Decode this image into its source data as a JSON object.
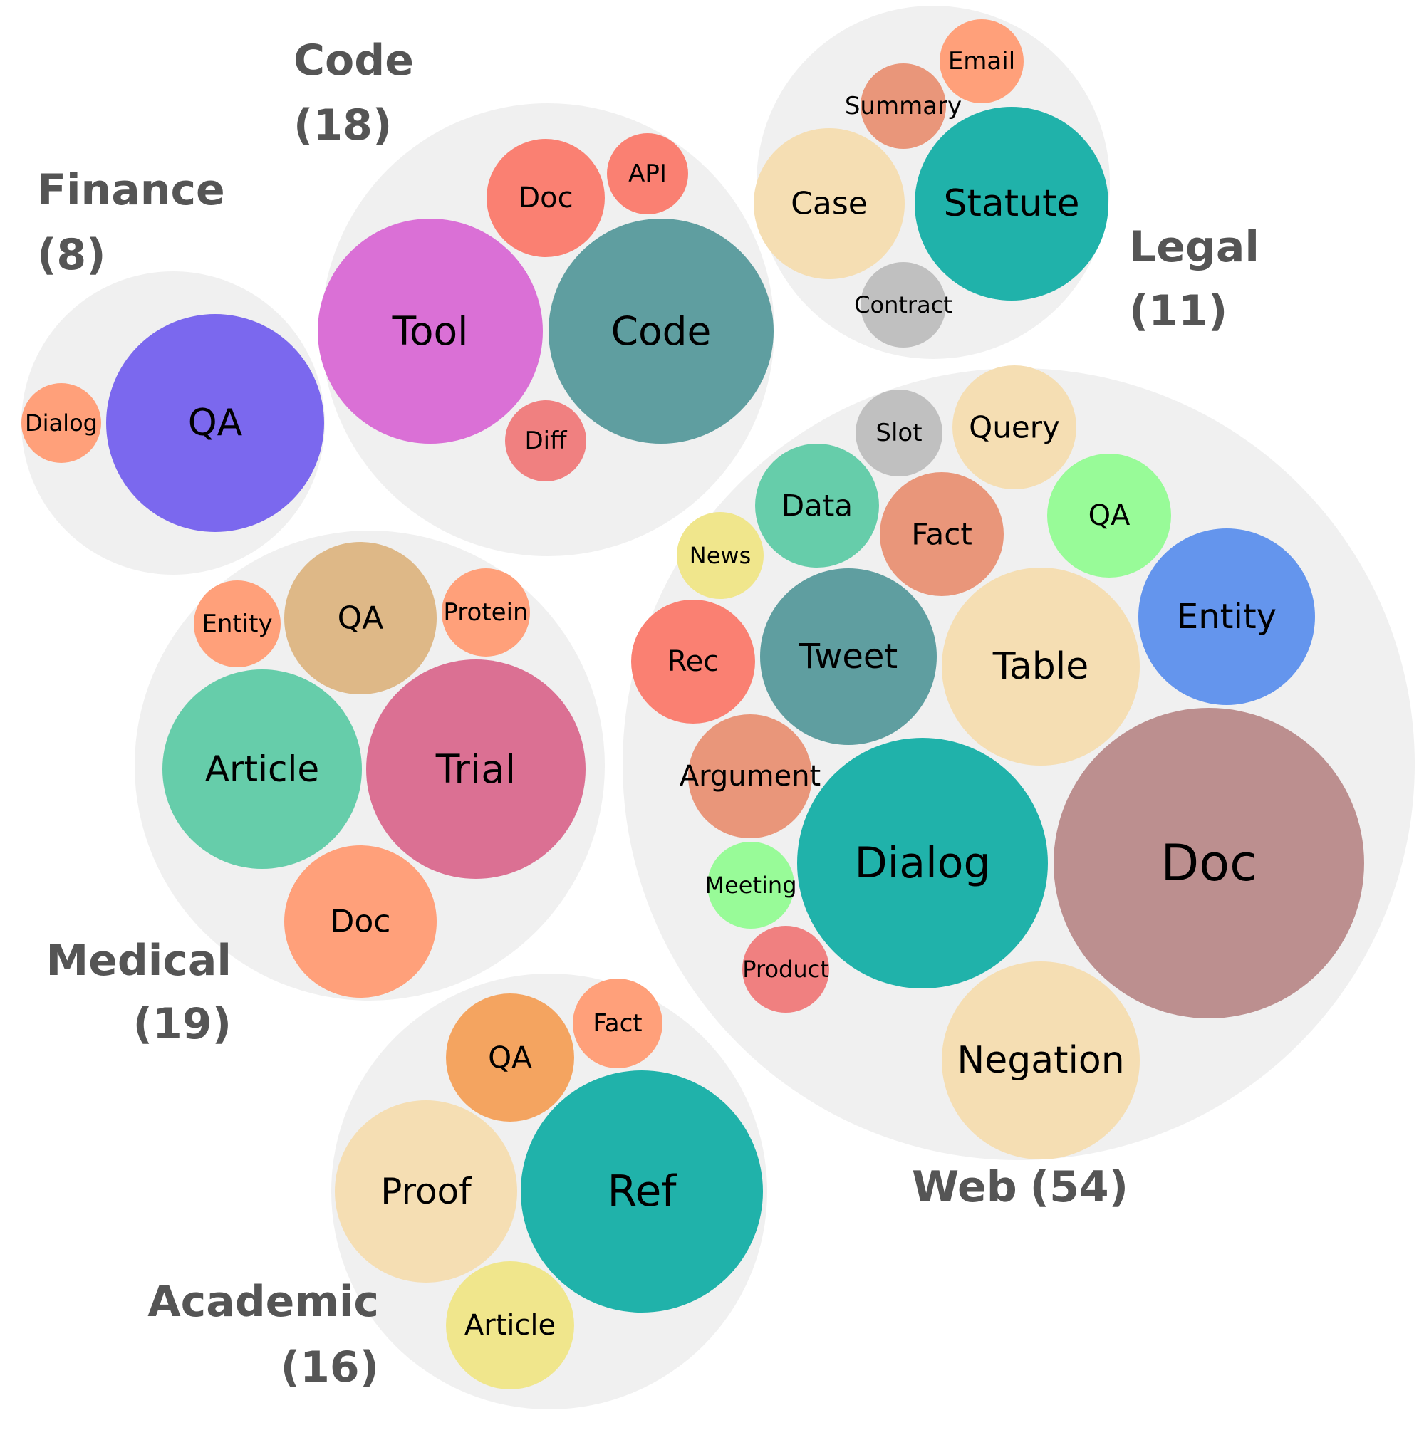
{
  "chart_data": {
    "type": "bubble-pack",
    "groups": [
      {
        "name": "Finance",
        "count_label": "(8)",
        "items": [
          {
            "label": "QA",
            "color": "#7B68EE"
          },
          {
            "label": "Dialog",
            "color": "#FFA07A"
          }
        ]
      },
      {
        "name": "Code",
        "count_label": "(18)",
        "items": [
          {
            "label": "Tool",
            "color": "#DA70D6"
          },
          {
            "label": "Code",
            "color": "#5F9EA0"
          },
          {
            "label": "Doc",
            "color": "#FA8072"
          },
          {
            "label": "API",
            "color": "#FA8072"
          },
          {
            "label": "Diff",
            "color": "#F08080"
          }
        ]
      },
      {
        "name": "Legal",
        "count_label": "(11)",
        "items": [
          {
            "label": "Statute",
            "color": "#20B2AA"
          },
          {
            "label": "Case",
            "color": "#F5DEB3"
          },
          {
            "label": "Summary",
            "color": "#E9967A"
          },
          {
            "label": "Email",
            "color": "#FFA07A"
          },
          {
            "label": "Contract",
            "color": "#C0C0C0"
          }
        ]
      },
      {
        "name": "Medical",
        "count_label": "(19)",
        "items": [
          {
            "label": "Trial",
            "color": "#DB7093"
          },
          {
            "label": "Article",
            "color": "#66CDAA"
          },
          {
            "label": "QA",
            "color": "#DEB887"
          },
          {
            "label": "Doc",
            "color": "#FFA07A"
          },
          {
            "label": "Entity",
            "color": "#FFA07A"
          },
          {
            "label": "Protein",
            "color": "#FFA07A"
          }
        ]
      },
      {
        "name": "Web",
        "count_label": "(54)",
        "items": [
          {
            "label": "Doc",
            "color": "#BC8F8F"
          },
          {
            "label": "Dialog",
            "color": "#20B2AA"
          },
          {
            "label": "Table",
            "color": "#F5DEB3"
          },
          {
            "label": "Negation",
            "color": "#F5DEB3"
          },
          {
            "label": "Entity",
            "color": "#6495ED"
          },
          {
            "label": "Tweet",
            "color": "#5F9EA0"
          },
          {
            "label": "Query",
            "color": "#F5DEB3"
          },
          {
            "label": "Fact",
            "color": "#E9967A"
          },
          {
            "label": "Data",
            "color": "#66CDAA"
          },
          {
            "label": "QA",
            "color": "#98FB98"
          },
          {
            "label": "Rec",
            "color": "#FA8072"
          },
          {
            "label": "Argument",
            "color": "#E9967A"
          },
          {
            "label": "Slot",
            "color": "#C0C0C0"
          },
          {
            "label": "News",
            "color": "#F0E68C"
          },
          {
            "label": "Meeting",
            "color": "#98FB98"
          },
          {
            "label": "Product",
            "color": "#F08080"
          }
        ]
      },
      {
        "name": "Academic",
        "count_label": "(16)",
        "items": [
          {
            "label": "Ref",
            "color": "#20B2AA"
          },
          {
            "label": "Proof",
            "color": "#F5DEB3"
          },
          {
            "label": "QA",
            "color": "#F4A460"
          },
          {
            "label": "Article",
            "color": "#F0E68C"
          },
          {
            "label": "Fact",
            "color": "#FFA07A"
          }
        ]
      }
    ]
  }
}
